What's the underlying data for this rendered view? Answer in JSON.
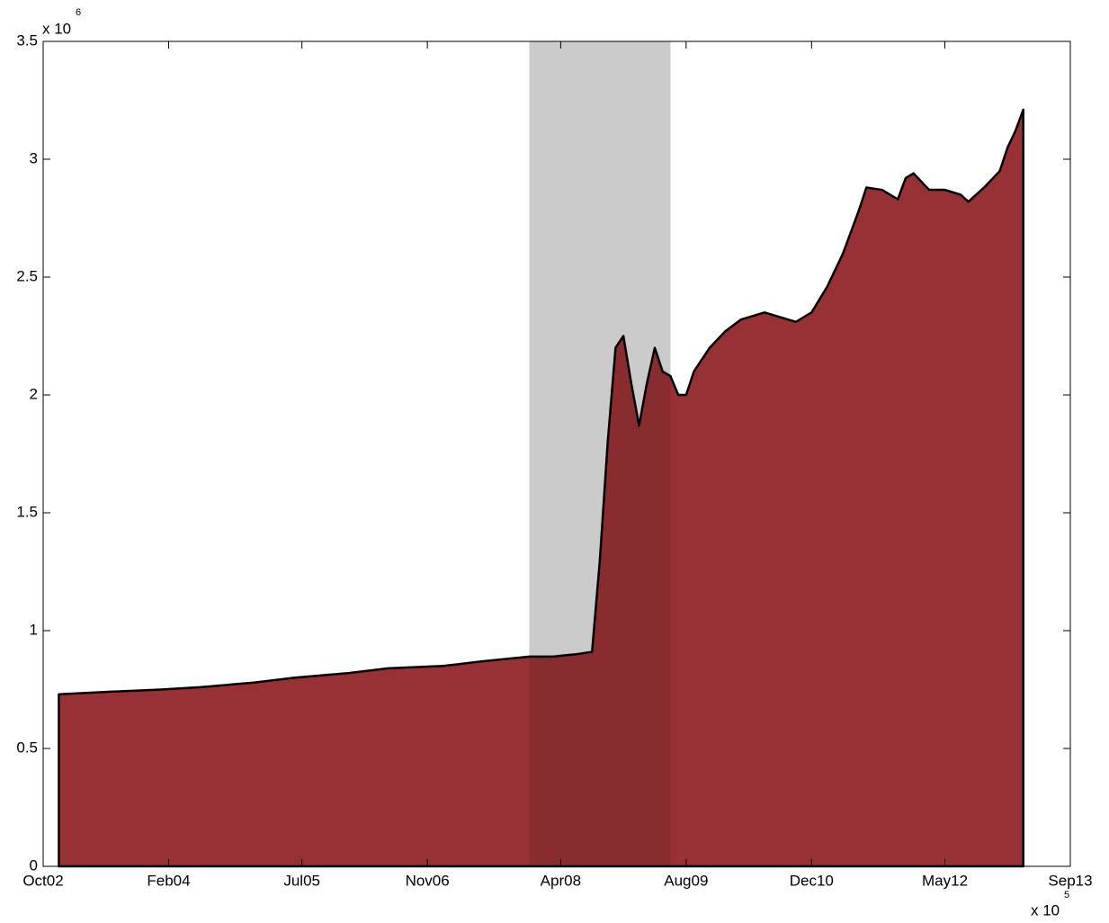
{
  "chart_data": {
    "type": "area",
    "y_multiplier": "x 10",
    "y_exponent": "6",
    "x_multiplier": "x 10",
    "x_exponent": "5",
    "color": "#983135",
    "line_color": "#000000",
    "shade": [
      "2007-12",
      "2009-06"
    ],
    "shade_color": "#e3e3e3",
    "x": [
      "2002-12",
      "2003-06",
      "2004-01",
      "2004-06",
      "2005-01",
      "2005-06",
      "2006-01",
      "2006-06",
      "2007-01",
      "2007-06",
      "2007-12",
      "2008-03",
      "2008-06",
      "2008-08",
      "2008-09",
      "2008-10",
      "2008-11",
      "2008-12",
      "2009-01",
      "2009-02",
      "2009-03",
      "2009-04",
      "2009-05",
      "2009-06",
      "2009-07",
      "2009-08",
      "2009-09",
      "2009-11",
      "2010-01",
      "2010-03",
      "2010-06",
      "2010-08",
      "2010-10",
      "2010-12",
      "2011-02",
      "2011-04",
      "2011-06",
      "2011-07",
      "2011-09",
      "2011-11",
      "2011-12",
      "2012-01",
      "2012-03",
      "2012-05",
      "2012-07",
      "2012-08",
      "2012-10",
      "2012-12",
      "2013-01",
      "2013-02",
      "2013-03"
    ],
    "values": [
      0.73,
      0.74,
      0.75,
      0.76,
      0.78,
      0.8,
      0.82,
      0.84,
      0.85,
      0.87,
      0.89,
      0.89,
      0.9,
      0.91,
      1.3,
      1.8,
      2.2,
      2.25,
      2.05,
      1.87,
      2.05,
      2.2,
      2.1,
      2.08,
      2.0,
      2.0,
      2.1,
      2.2,
      2.27,
      2.32,
      2.35,
      2.33,
      2.31,
      2.35,
      2.46,
      2.6,
      2.78,
      2.88,
      2.87,
      2.83,
      2.92,
      2.94,
      2.87,
      2.87,
      2.85,
      2.82,
      2.88,
      2.95,
      3.05,
      3.12,
      3.21
    ],
    "xlim": [
      "2002-10",
      "2013-09"
    ],
    "xticks": [
      {
        "value": "2002-10",
        "label": "Oct02"
      },
      {
        "value": "2004-02",
        "label": "Feb04"
      },
      {
        "value": "2005-07",
        "label": "Jul05"
      },
      {
        "value": "2006-11",
        "label": "Nov06"
      },
      {
        "value": "2008-04",
        "label": "Apr08"
      },
      {
        "value": "2009-08",
        "label": "Aug09"
      },
      {
        "value": "2010-12",
        "label": "Dec10"
      },
      {
        "value": "2012-05",
        "label": "May12"
      },
      {
        "value": "2013-09",
        "label": "Sep13"
      }
    ],
    "ylim": [
      0,
      3.5
    ],
    "yticks": [
      0,
      0.5,
      1,
      1.5,
      2,
      2.5,
      3,
      3.5
    ]
  }
}
